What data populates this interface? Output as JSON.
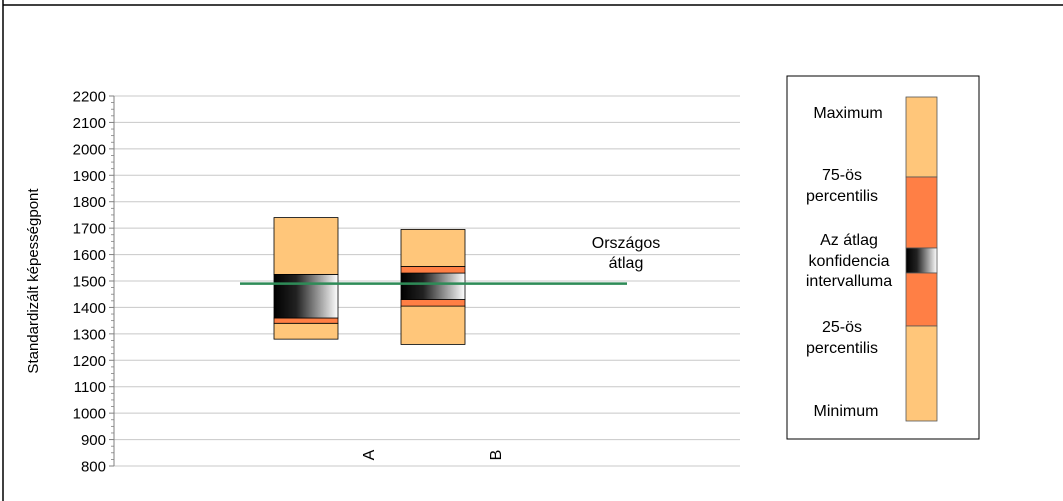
{
  "chart_data": {
    "type": "box",
    "ylabel": "Standardizált képességpont",
    "ylim": [
      800,
      2200
    ],
    "y_ticks": [
      800,
      900,
      1000,
      1100,
      1200,
      1300,
      1400,
      1500,
      1600,
      1700,
      1800,
      1900,
      2000,
      2100,
      2200
    ],
    "grid": true,
    "categories": [
      "A",
      "B"
    ],
    "boxes": [
      {
        "category": "A",
        "min": 1280,
        "p25": 1340,
        "ci_low": 1360,
        "ci_high": 1525,
        "p75": 1525,
        "max": 1740
      },
      {
        "category": "B",
        "min": 1260,
        "p25": 1405,
        "ci_low": 1430,
        "ci_high": 1530,
        "p75": 1555,
        "max": 1695
      }
    ],
    "reference_line": {
      "label_line1": "Országos",
      "label_line2": "átlag",
      "value": 1490,
      "color": "#2e8b57"
    },
    "colors": {
      "outer": "#ffc67a",
      "quartile": "#ff7f45",
      "ci_dark": "#000000",
      "ci_light": "#ffffff"
    },
    "legend": {
      "position": "right",
      "items": [
        "Maximum",
        "75-ös percentilis",
        "Az átlag konfidencia intervalluma",
        "25-ös percentilis",
        "Minimum"
      ],
      "max_label": "Maximum",
      "p75_line1": "75-ös",
      "p75_line2": "percentilis",
      "ci_line1": "Az átlag",
      "ci_line2": "konfidencia",
      "ci_line3": "intervalluma",
      "p25_line1": "25-ös",
      "p25_line2": "percentilis",
      "min_label": "Minimum"
    }
  }
}
